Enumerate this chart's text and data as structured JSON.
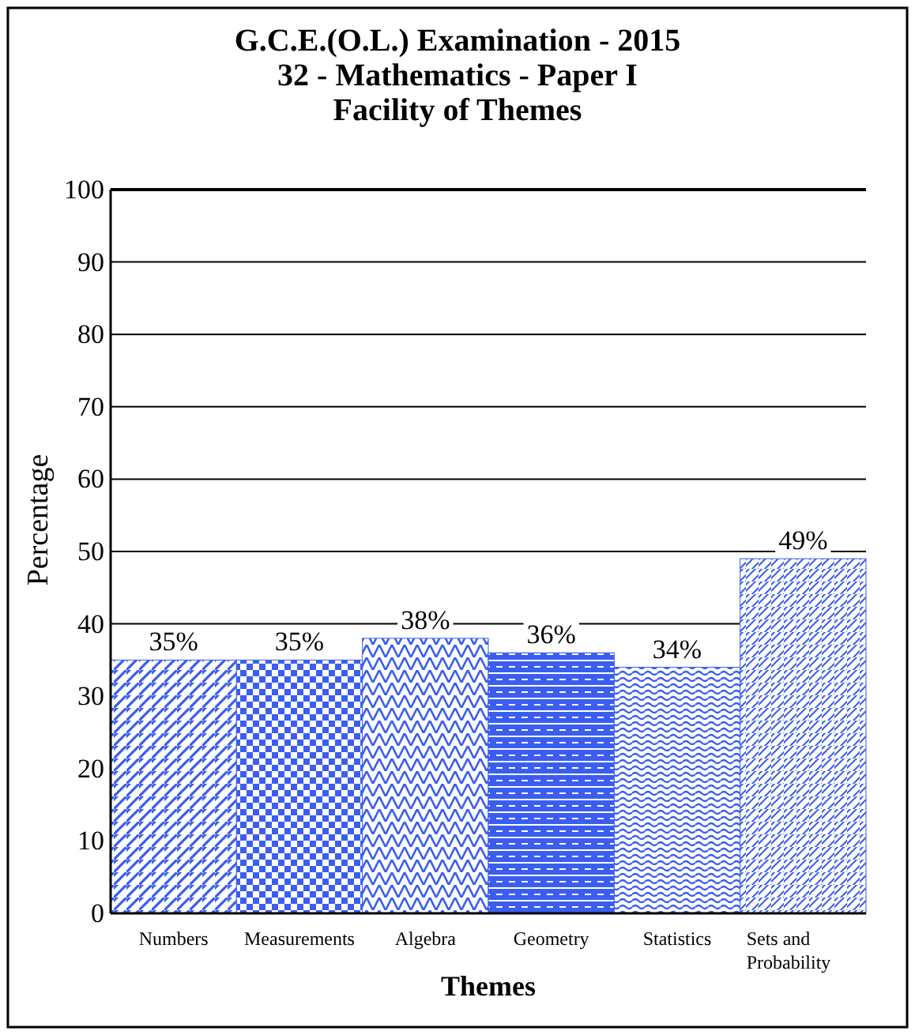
{
  "chart_data": {
    "type": "bar",
    "title": "G.C.E.(O.L.) Examination - 2015\n32  -  Mathematics  -  Paper I\nFacility of Themes",
    "xlabel": "Themes",
    "ylabel": "Percentage",
    "categories": [
      "Numbers",
      "Measurements",
      "Algebra",
      "Geometry",
      "Statistics",
      "Sets and Probability"
    ],
    "values": [
      35,
      35,
      38,
      36,
      34,
      49
    ],
    "value_labels": [
      "35%",
      "35%",
      "38%",
      "36%",
      "34%",
      "49%"
    ],
    "colors": [
      "#3b5ef0",
      "#3b5ef0",
      "#3b5ef0",
      "#3b5ef0",
      "#3b5ef0",
      "#3b5ef0"
    ],
    "ylim": [
      0,
      100
    ],
    "yticks": [
      0,
      10,
      20,
      30,
      40,
      50,
      60,
      70,
      80,
      90,
      100
    ],
    "grid": "y"
  }
}
